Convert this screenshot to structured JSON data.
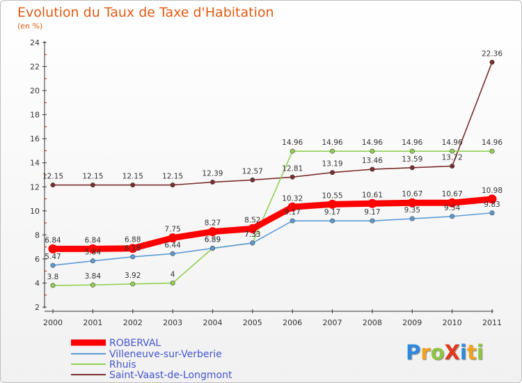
{
  "title": "Evolution du Taux de Taxe d'Habitation",
  "subtitle": "(en %)",
  "logo": {
    "text": "ProXiti",
    "letters": [
      {
        "ch": "P",
        "color": "#2d8ae0"
      },
      {
        "ch": "r",
        "color": "#f0a21f"
      },
      {
        "ch": "o",
        "color": "#8cc63f"
      },
      {
        "ch": "X",
        "color": "#e2381c"
      },
      {
        "ch": "i",
        "color": "#2d8ae0"
      },
      {
        "ch": "t",
        "color": "#f0a21f"
      },
      {
        "ch": "i",
        "color": "#8cc63f"
      }
    ]
  },
  "chart_data": {
    "type": "line",
    "title": "Evolution du Taux de Taxe d'Habitation",
    "ylabel": "(en %)",
    "xlabel": "",
    "x": [
      "2000",
      "2001",
      "2002",
      "2003",
      "2004",
      "2005",
      "2006",
      "2007",
      "2008",
      "2009",
      "2010",
      "2011"
    ],
    "ylim": [
      2,
      24
    ],
    "yticks": [
      2,
      4,
      6,
      8,
      10,
      12,
      14,
      16,
      18,
      20,
      22,
      24
    ],
    "grid": false,
    "legend_position": "bottom-left",
    "series": [
      {
        "name": "ROBERVAL",
        "color": "#ff0000",
        "values": [
          6.84,
          6.84,
          6.88,
          7.75,
          8.27,
          8.52,
          10.32,
          10.55,
          10.61,
          10.67,
          10.67,
          10.98
        ],
        "labels": [
          "6.84",
          "6.84",
          "6.88",
          "7.75",
          "8.27",
          "8.52",
          "10.32",
          "10.55",
          "10.61",
          "10.67",
          "10.67",
          "10.98"
        ]
      },
      {
        "name": "Villeneuve-sur-Verberie",
        "color": "#5b9bd5",
        "values": [
          5.47,
          5.84,
          6.18,
          6.44,
          6.89,
          7.33,
          9.17,
          9.17,
          9.17,
          9.35,
          9.54,
          9.83
        ],
        "labels": [
          "5.47",
          "5.84",
          "6.18",
          "6.44",
          "6.89",
          "7.33",
          "9.17",
          "9.17",
          "9.17",
          "9.35",
          "9.54",
          "9.83"
        ]
      },
      {
        "name": "Rhuis",
        "color": "#92d050",
        "values": [
          3.8,
          3.84,
          3.92,
          4,
          6.89,
          7.33,
          14.96,
          14.96,
          14.96,
          14.96,
          14.96,
          14.96
        ],
        "labels": [
          "3.8",
          "3.84",
          "3.92",
          "4",
          "6.89",
          "7.33",
          "14.96",
          "14.96",
          "14.96",
          "14.96",
          "14.96",
          "14.96"
        ]
      },
      {
        "name": "Saint-Vaast-de-Longmont",
        "color": "#7b2c2c",
        "values": [
          12.15,
          12.15,
          12.15,
          12.15,
          12.39,
          12.57,
          12.81,
          13.19,
          13.46,
          13.59,
          13.72,
          22.36
        ],
        "labels": [
          "12.15",
          "12.15",
          "12.15",
          "12.15",
          "12.39",
          "12.57",
          "12.81",
          "13.19",
          "13.46",
          "13.59",
          "13.72",
          "22.36"
        ]
      }
    ]
  }
}
